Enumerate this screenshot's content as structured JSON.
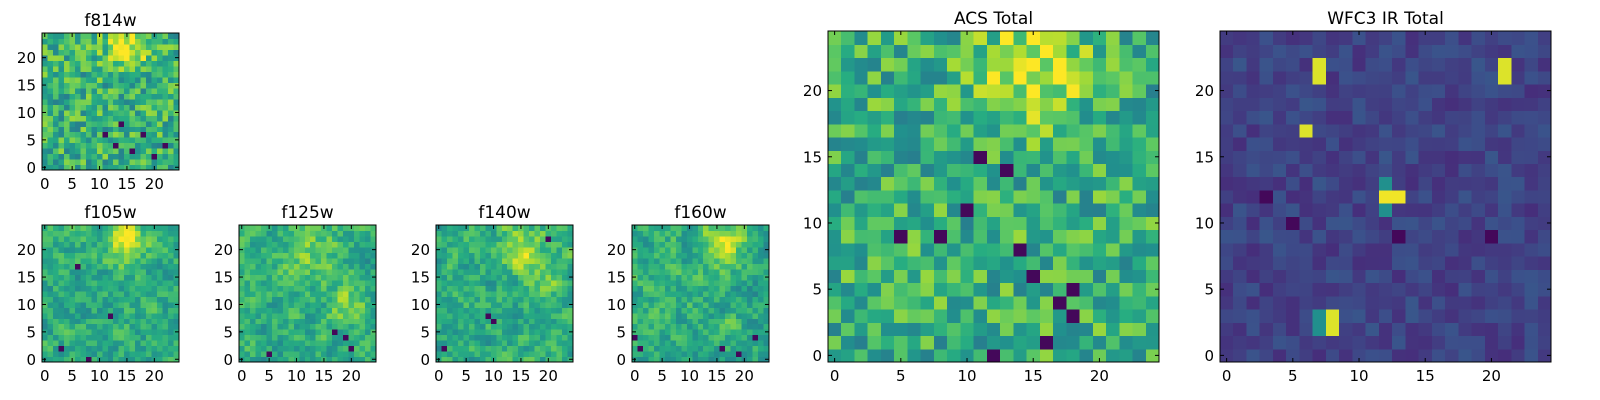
{
  "chart_data": [
    {
      "type": "heatmap",
      "title": "f814w",
      "colormap": "viridis",
      "nx": 25,
      "ny": 25,
      "xlim": [
        -0.5,
        24.5
      ],
      "ylim": [
        -0.5,
        24.5
      ],
      "xticks": [
        0,
        5,
        10,
        15,
        20
      ],
      "yticks": [
        0,
        5,
        10,
        15,
        20
      ],
      "texture": "noisy",
      "seed": 11,
      "baseline": 0.64,
      "blobs": [
        {
          "x": 15,
          "y": 21.5,
          "amp": 0.32,
          "sigma": 2.8
        }
      ],
      "dark_pixels": [
        [
          11,
          6
        ],
        [
          13,
          4
        ],
        [
          16,
          3
        ],
        [
          18,
          6
        ],
        [
          20,
          2
        ],
        [
          14,
          8
        ],
        [
          22,
          4
        ]
      ]
    },
    {
      "type": "heatmap",
      "title": "f105w",
      "colormap": "viridis",
      "nx": 25,
      "ny": 25,
      "xlim": [
        -0.5,
        24.5
      ],
      "ylim": [
        -0.5,
        24.5
      ],
      "xticks": [
        0,
        5,
        10,
        15,
        20
      ],
      "yticks": [
        0,
        5,
        10,
        15,
        20
      ],
      "texture": "smooth",
      "seed": 23,
      "baseline": 0.62,
      "blobs": [
        {
          "x": 15,
          "y": 21.5,
          "amp": 0.34,
          "sigma": 2.6
        }
      ],
      "dark_pixels": [
        [
          6,
          17
        ],
        [
          8,
          0
        ],
        [
          12,
          8
        ],
        [
          3,
          2
        ]
      ]
    },
    {
      "type": "heatmap",
      "title": "f125w",
      "colormap": "viridis",
      "nx": 25,
      "ny": 25,
      "xlim": [
        -0.5,
        24.5
      ],
      "ylim": [
        -0.5,
        24.5
      ],
      "xticks": [
        0,
        5,
        10,
        15,
        20
      ],
      "yticks": [
        0,
        5,
        10,
        15,
        20
      ],
      "texture": "smooth",
      "seed": 37,
      "baseline": 0.62,
      "blobs": [
        {
          "x": 12,
          "y": 20,
          "amp": 0.2,
          "sigma": 3.5
        },
        {
          "x": 19,
          "y": 10,
          "amp": 0.18,
          "sigma": 2.5
        }
      ],
      "dark_pixels": [
        [
          17,
          5
        ],
        [
          19,
          4
        ],
        [
          20,
          2
        ],
        [
          5,
          1
        ]
      ]
    },
    {
      "type": "heatmap",
      "title": "f140w",
      "colormap": "viridis",
      "nx": 25,
      "ny": 25,
      "xlim": [
        -0.5,
        24.5
      ],
      "ylim": [
        -0.5,
        24.5
      ],
      "xticks": [
        0,
        5,
        10,
        15,
        20
      ],
      "yticks": [
        0,
        5,
        10,
        15,
        20
      ],
      "texture": "smooth",
      "seed": 41,
      "baseline": 0.62,
      "blobs": [
        {
          "x": 15,
          "y": 20,
          "amp": 0.3,
          "sigma": 2.6
        },
        {
          "x": 19,
          "y": 14,
          "amp": 0.15,
          "sigma": 2.2
        }
      ],
      "dark_pixels": [
        [
          20,
          22
        ],
        [
          9,
          8
        ],
        [
          10,
          7
        ],
        [
          1,
          2
        ]
      ]
    },
    {
      "type": "heatmap",
      "title": "f160w",
      "colormap": "viridis",
      "nx": 25,
      "ny": 25,
      "xlim": [
        -0.5,
        24.5
      ],
      "ylim": [
        -0.5,
        24.5
      ],
      "xticks": [
        0,
        5,
        10,
        15,
        20
      ],
      "yticks": [
        0,
        5,
        10,
        15,
        20
      ],
      "texture": "smooth",
      "seed": 53,
      "baseline": 0.62,
      "blobs": [
        {
          "x": 16,
          "y": 21.5,
          "amp": 0.34,
          "sigma": 2.8
        }
      ],
      "dark_pixels": [
        [
          0,
          4
        ],
        [
          1,
          2
        ],
        [
          16,
          2
        ],
        [
          19,
          1
        ],
        [
          22,
          4
        ]
      ]
    },
    {
      "type": "heatmap",
      "title": "ACS Total",
      "colormap": "viridis",
      "nx": 25,
      "ny": 25,
      "xlim": [
        -0.5,
        24.5
      ],
      "ylim": [
        -0.5,
        24.5
      ],
      "xticks": [
        0,
        5,
        10,
        15,
        20
      ],
      "yticks": [
        0,
        5,
        10,
        15,
        20
      ],
      "texture": "noisy",
      "seed": 67,
      "baseline": 0.64,
      "blobs": [
        {
          "x": 15,
          "y": 21.5,
          "amp": 0.32,
          "sigma": 2.8
        }
      ],
      "dark_pixels": [
        [
          11,
          15
        ],
        [
          13,
          14
        ],
        [
          10,
          11
        ],
        [
          5,
          9
        ],
        [
          8,
          9
        ],
        [
          14,
          8
        ],
        [
          15,
          6
        ],
        [
          18,
          5
        ],
        [
          18,
          3
        ],
        [
          17,
          4
        ],
        [
          12,
          0
        ],
        [
          16,
          1
        ]
      ]
    },
    {
      "type": "heatmap",
      "title": "WFC3 IR Total",
      "colormap": "viridis",
      "nx": 25,
      "ny": 25,
      "xlim": [
        -0.5,
        24.5
      ],
      "ylim": [
        -0.5,
        24.5
      ],
      "xticks": [
        0,
        5,
        10,
        15,
        20
      ],
      "yticks": [
        0,
        5,
        10,
        15,
        20
      ],
      "texture": "faint",
      "seed": 79,
      "baseline": 0.2,
      "blobs": [],
      "bright_pixels": [
        [
          7,
          22,
          0.95
        ],
        [
          7,
          21,
          0.95
        ],
        [
          21,
          22,
          0.95
        ],
        [
          21,
          21,
          0.95
        ],
        [
          6,
          17,
          0.95
        ],
        [
          12,
          12,
          0.98
        ],
        [
          13,
          12,
          0.98
        ],
        [
          12,
          13,
          0.5
        ],
        [
          12,
          11,
          0.5
        ],
        [
          8,
          3,
          0.95
        ],
        [
          8,
          2,
          0.95
        ],
        [
          7,
          3,
          0.5
        ],
        [
          7,
          2,
          0.5
        ]
      ],
      "dark_pixels": [
        [
          3,
          12
        ],
        [
          5,
          10
        ],
        [
          13,
          9
        ],
        [
          20,
          9
        ]
      ]
    }
  ]
}
